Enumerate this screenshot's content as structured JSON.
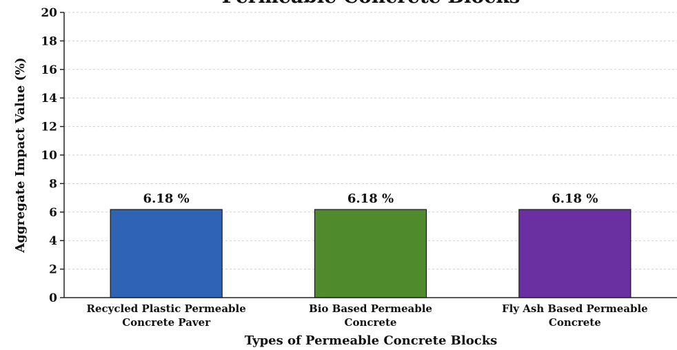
{
  "chart_data": {
    "type": "bar",
    "title": "Permeable Concrete Blocks",
    "xlabel": "Types of Permeable Concrete Blocks",
    "ylabel": "Aggregate Impact Value (%)",
    "ylim": [
      0,
      20
    ],
    "yticks": [
      0,
      2,
      4,
      6,
      8,
      10,
      12,
      14,
      16,
      18,
      20
    ],
    "grid": true,
    "categories": [
      [
        "Recycled Plastic Permeable",
        "Concrete Paver"
      ],
      [
        "Bio Based Permeable",
        "Concrete"
      ],
      [
        "Fly Ash Based Permeable",
        "Concrete"
      ]
    ],
    "values": [
      6.18,
      6.18,
      6.18
    ],
    "data_labels": [
      "6.18 %",
      "6.18 %",
      "6.18 %"
    ],
    "colors": [
      "#2f63b3",
      "#4f8a2d",
      "#6a2fa0"
    ]
  }
}
